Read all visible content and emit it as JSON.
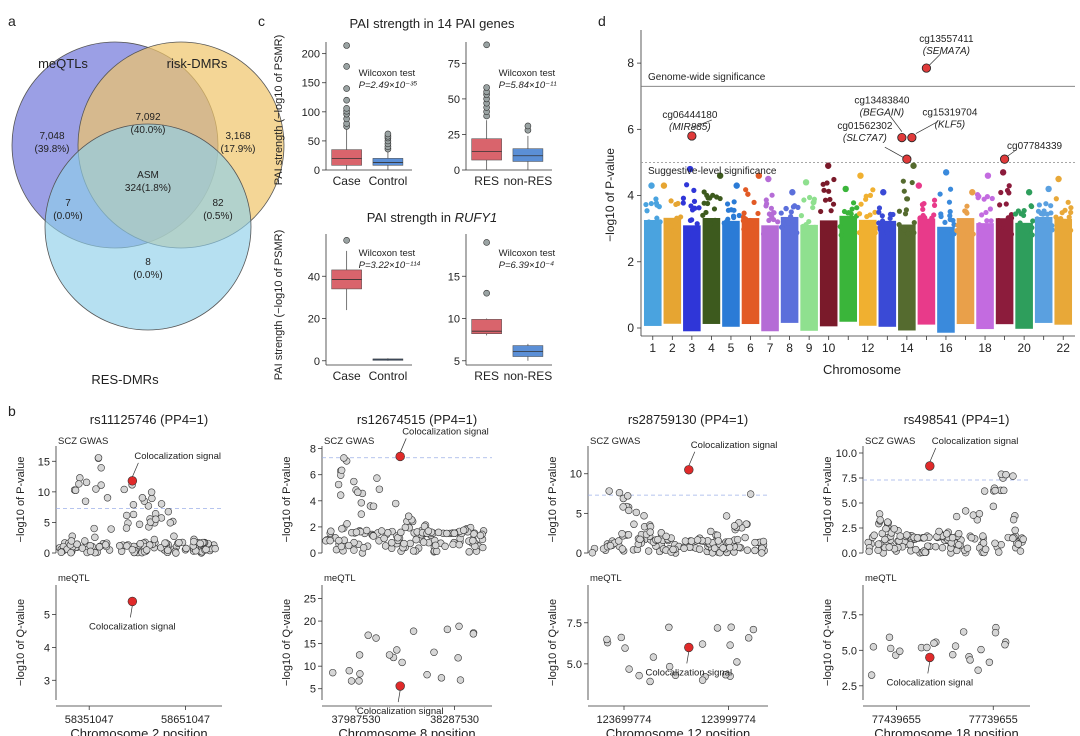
{
  "panel_labels": {
    "a": "a",
    "b": "b",
    "c": "c",
    "d": "d"
  },
  "venn": {
    "labels": {
      "meqtl": "meQTLs",
      "risk": "risk-DMRs",
      "res": "RES-DMRs"
    },
    "colors": {
      "meqtl": "#8a8ee0",
      "risk": "#efc46a",
      "res": "#8fd0ea"
    },
    "regions": {
      "meqtl_only": {
        "n": "7,048",
        "p": "(39.8%)"
      },
      "meqtl_risk": {
        "n": "7,092",
        "p": "(40.0%)"
      },
      "risk_only": {
        "n": "3,168",
        "p": "(17.9%)"
      },
      "center": {
        "n": "ASM",
        "p": "324(1.8%)"
      },
      "meqtl_res": {
        "n": "7",
        "p": "(0.0%)"
      },
      "risk_res": {
        "n": "82",
        "p": "(0.5%)"
      },
      "res_only": {
        "n": "8",
        "p": "(0.0%)"
      }
    }
  },
  "panel_c": {
    "title_top": "PAI strength in 14 PAI genes",
    "title_bottom_prefix": "PAI strength in ",
    "title_bottom_gene": "RUFY1",
    "ylabel": "PAI strength (−log10 of PSMR)",
    "colors": {
      "case": "#d9646c",
      "control": "#5b8fd6"
    },
    "charts": [
      {
        "id": "c1",
        "categories": [
          "Case",
          "Control"
        ],
        "ticks": [
          0,
          50,
          100,
          150,
          200
        ],
        "ylim": [
          0,
          220
        ],
        "test": "Wilcoxon test",
        "pval": "P=2.49×10⁻³⁵",
        "boxes": [
          {
            "q1": 8,
            "med": 20,
            "q3": 35,
            "lo": 0,
            "hi": 72,
            "outliers": [
              75,
              80,
              88,
              96,
              101,
              106,
              120,
              140,
              178,
              214
            ]
          },
          {
            "q1": 8,
            "med": 13,
            "q3": 20,
            "lo": 0,
            "hi": 32,
            "outliers": [
              36,
              40,
              45,
              50,
              55,
              58,
              62
            ]
          }
        ]
      },
      {
        "id": "c2",
        "categories": [
          "RES",
          "non-RES"
        ],
        "ticks": [
          0,
          25,
          50,
          75
        ],
        "ylim": [
          0,
          90
        ],
        "test": "Wilcoxon test",
        "pval": "P=5.84×10⁻¹¹",
        "boxes": [
          {
            "q1": 7,
            "med": 13,
            "q3": 22,
            "lo": 0,
            "hi": 35,
            "outliers": [
              38,
              41,
              44,
              47,
              50,
              53,
              55,
              58,
              88
            ]
          },
          {
            "q1": 6,
            "med": 10,
            "q3": 15,
            "lo": 0,
            "hi": 24,
            "outliers": [
              28,
              31
            ]
          }
        ]
      },
      {
        "id": "c3",
        "categories": [
          "Case",
          "Control"
        ],
        "ticks": [
          0,
          20,
          40
        ],
        "ylim": [
          -2,
          60
        ],
        "test": "Wilcoxon test",
        "pval": "P=3.22×10⁻¹¹⁴",
        "boxes": [
          {
            "q1": 34,
            "med": 38.5,
            "q3": 43,
            "lo": 24,
            "hi": 52,
            "outliers": [
              57
            ]
          },
          {
            "q1": 0.3,
            "med": 0.6,
            "q3": 0.9,
            "lo": 0,
            "hi": 1.2,
            "outliers": []
          }
        ]
      },
      {
        "id": "c4",
        "categories": [
          "RES",
          "non-RES"
        ],
        "ticks": [
          5,
          10,
          15
        ],
        "ylim": [
          4.5,
          20
        ],
        "test": "Wilcoxon test",
        "pval": "P=6.39×10⁻⁴",
        "boxes": [
          {
            "q1": 8.2,
            "med": 8.5,
            "q3": 9.9,
            "lo": 8.0,
            "hi": 10.0,
            "outliers": [
              13,
              19
            ]
          },
          {
            "q1": 5.5,
            "med": 6.1,
            "q3": 6.8,
            "lo": 5.0,
            "hi": 7.0,
            "outliers": []
          }
        ]
      }
    ]
  },
  "panel_d": {
    "ylabel": "−log10 of P-value",
    "xlabel": "Chromosome",
    "ticks": [
      0,
      2,
      4,
      6,
      8
    ],
    "ylim": [
      0,
      9
    ],
    "chrom_labels": [
      "1",
      "2",
      "3",
      "4",
      "5",
      "6",
      "7",
      "8",
      "9",
      "10",
      "12",
      "14",
      "16",
      "18",
      "20",
      "22"
    ],
    "chrom_label_positions": [
      1,
      2,
      3,
      4,
      5,
      6,
      7,
      8,
      9,
      10,
      12,
      14,
      16,
      18,
      20,
      22
    ],
    "genome_wide": {
      "label": "Genome-wide significance",
      "value": 7.3
    },
    "suggestive": {
      "label": "Suggestive-level significance",
      "value": 5.0
    },
    "chrom_colors": [
      "#4aa3df",
      "#e6a532",
      "#2f36d8",
      "#3d5a1e",
      "#2b7bd6",
      "#e25a25",
      "#b56cd6",
      "#5b6fdb",
      "#8fe08f",
      "#7a1a2a",
      "#3ab53a",
      "#f0b030",
      "#3a4ad6",
      "#556b2f",
      "#e83a8a",
      "#3a8adc",
      "#e9a04a",
      "#c36be0",
      "#8c1c3c",
      "#2e9e5c",
      "#5aa0e0",
      "#e8a838"
    ],
    "chrom_max": [
      4.3,
      4.3,
      4.8,
      4.6,
      4.3,
      4.6,
      4.5,
      4.1,
      4.4,
      4.9,
      4.2,
      4.6,
      4.1,
      4.9,
      4.3,
      4.7,
      4.1,
      4.6,
      4.7,
      4.1,
      4.2,
      4.5
    ],
    "hits": [
      {
        "chr": 3,
        "y": 5.8,
        "label": "cg06444180",
        "gene": "MIR885"
      },
      {
        "chr": 14,
        "y": 5.75,
        "label": "cg13483840",
        "gene": "BEGAIN"
      },
      {
        "chr": 14,
        "y": 5.75,
        "label": "cg15319704",
        "gene": "KLF5"
      },
      {
        "chr": 14,
        "y": 5.1,
        "label": "cg01562302",
        "gene": "SLC7A7"
      },
      {
        "chr": 15,
        "y": 7.85,
        "label": "cg13557411",
        "gene": "SEMA7A"
      },
      {
        "chr": 19,
        "y": 5.1,
        "label": "cg07784339",
        "gene": ""
      }
    ]
  },
  "panel_b": {
    "gwas_tag": "SCZ GWAS",
    "meqtl_tag": "meQTL",
    "coloc_label": "Colocalization signal",
    "ylabel_top": "−log10 of P-value",
    "ylabel_bottom": "−log10 of Q-value",
    "plots": [
      {
        "title": "rs11125746 (PP4=1)",
        "xlabel": "Chromosome 2 position",
        "xticks": [
          "58351047",
          "58651047"
        ],
        "top_ticks": [
          0,
          5,
          10,
          15
        ],
        "top_ylim": [
          0,
          17.5
        ],
        "top_thresh": 7.3,
        "top_coloc": [
          0.46,
          11.8
        ],
        "bot_ticks": [
          3,
          4,
          5
        ],
        "bot_ylim": [
          2.4,
          5.9
        ],
        "bot_coloc": [
          0.46,
          5.4
        ]
      },
      {
        "title": "rs12674515 (PP4=1)",
        "xlabel": "Chromosome 8 position",
        "xticks": [
          "37987530",
          "38287530"
        ],
        "top_ticks": [
          0,
          2,
          4,
          6,
          8
        ],
        "top_ylim": [
          0,
          8.2
        ],
        "top_thresh": 7.3,
        "top_coloc": [
          0.46,
          7.4
        ],
        "bot_ticks": [
          5,
          10,
          15,
          20,
          25
        ],
        "bot_ylim": [
          2.5,
          28
        ],
        "bot_coloc": [
          0.46,
          5.6
        ]
      },
      {
        "title": "rs28759130 (PP4=1)",
        "xlabel": "Chromosome 12 position",
        "xticks": [
          "123699774",
          "123999774"
        ],
        "top_ticks": [
          0,
          5,
          10
        ],
        "top_ylim": [
          0,
          13.5
        ],
        "top_thresh": 7.3,
        "top_coloc": [
          0.56,
          10.5
        ],
        "bot_ticks": [
          5.0,
          7.5
        ],
        "bot_ylim": [
          2.8,
          9.8
        ],
        "bot_coloc": [
          0.56,
          6.0
        ]
      },
      {
        "title": "rs498541 (PP4=1)",
        "xlabel": "Chromosome 18 position",
        "xticks": [
          "77439655",
          "77739655"
        ],
        "top_ticks": [
          0.0,
          2.5,
          5.0,
          7.5,
          10.0
        ],
        "top_ylim": [
          0,
          10.7
        ],
        "top_thresh": 7.3,
        "top_coloc": [
          0.4,
          8.7
        ],
        "bot_ticks": [
          2.5,
          5.0,
          7.5
        ],
        "bot_ylim": [
          1.5,
          9.6
        ],
        "bot_coloc": [
          0.4,
          4.5
        ]
      }
    ]
  }
}
